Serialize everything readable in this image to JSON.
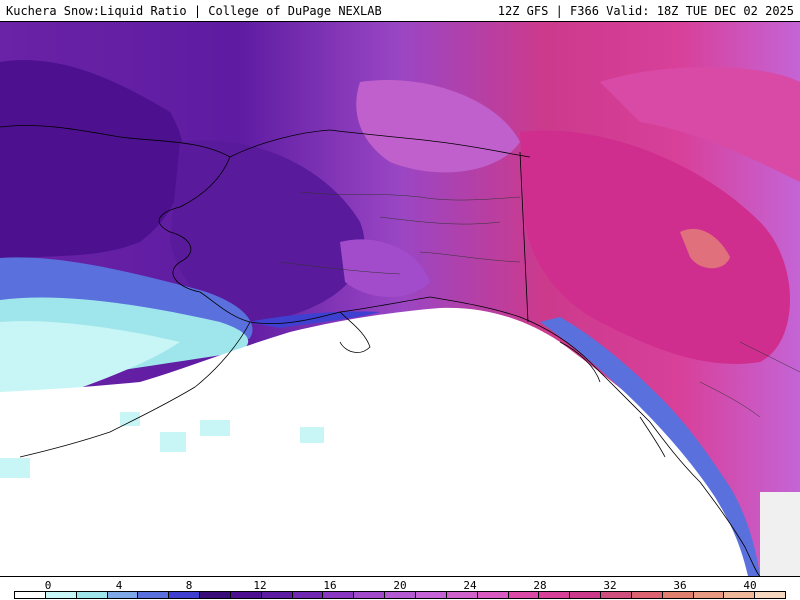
{
  "header": {
    "left_title": "Kuchera Snow:Liquid Ratio | College of DuPage NEXLAB",
    "right_title": "12Z GFS | F366 Valid: 18Z TUE DEC 02 2025"
  },
  "legend": {
    "tick_values": [
      "0",
      "4",
      "8",
      "12",
      "16",
      "20",
      "24",
      "28",
      "32",
      "36",
      "40"
    ],
    "colors": [
      "#ffffff",
      "#c8f5f5",
      "#9fe6ec",
      "#7fa8e6",
      "#5a70dc",
      "#3f3fd0",
      "#3a0e78",
      "#4d1190",
      "#5e1ca2",
      "#7028b2",
      "#8a38c2",
      "#a24ccc",
      "#b45ad2",
      "#c464d6",
      "#d062cc",
      "#d95ac0",
      "#dc4aa8",
      "#d8409a",
      "#cc3a8c",
      "#cf4f7e",
      "#dc6472",
      "#e28070",
      "#e89a82",
      "#f0b89a",
      "#f6d8c0"
    ]
  },
  "map": {
    "region": "Alaska, Gulf of Alaska and western Canada"
  }
}
